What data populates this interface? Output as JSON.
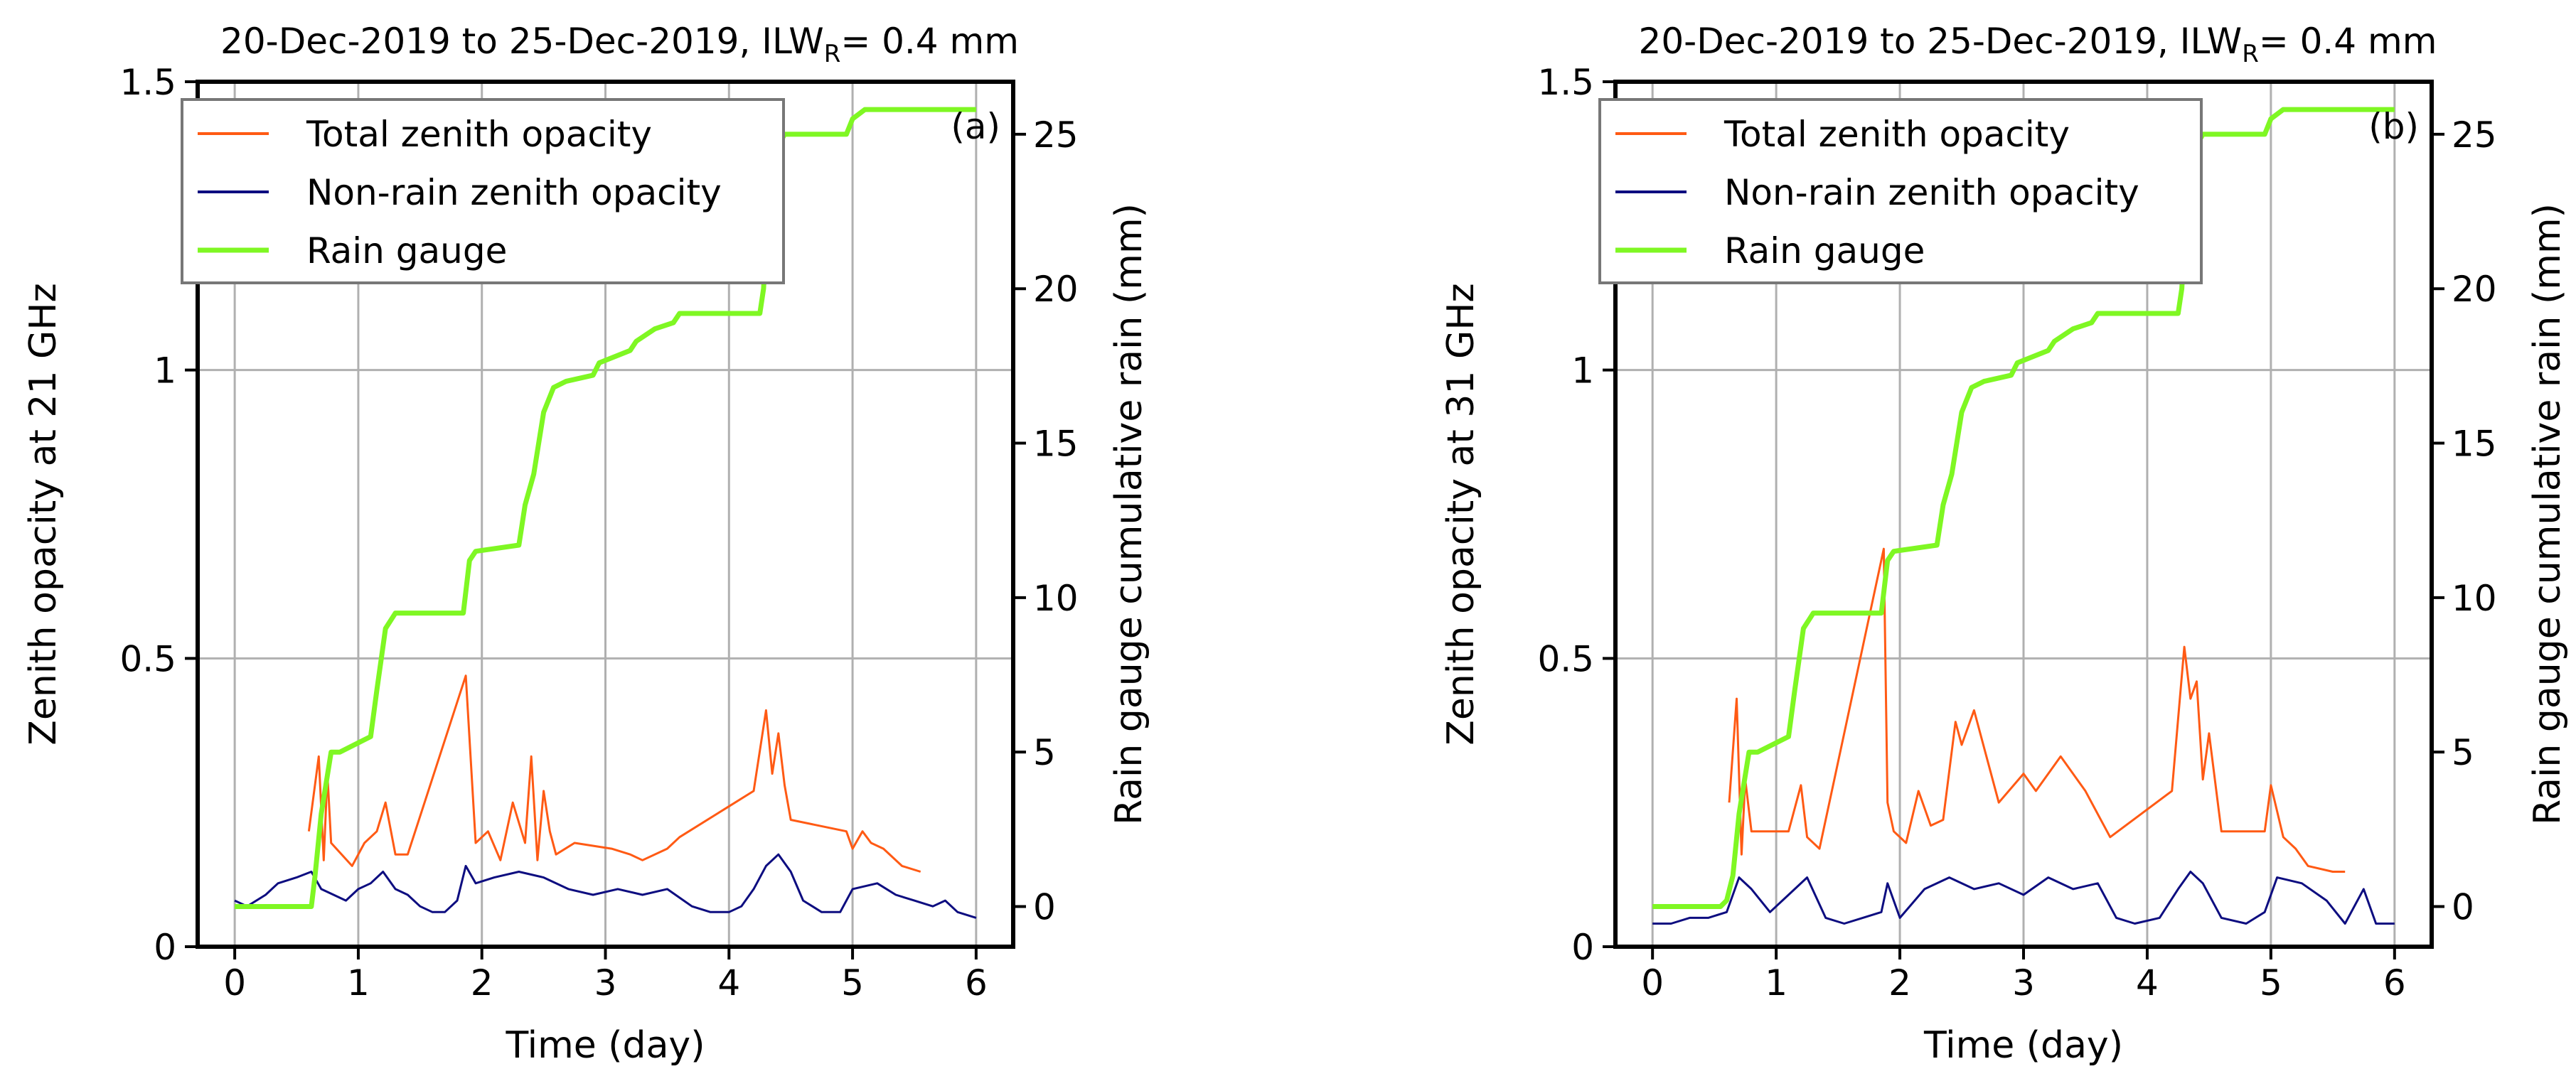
{
  "chart_data": [
    {
      "id": "a",
      "type": "line",
      "title": "20-Dec-2019 to 25-Dec-2019, ILW",
      "title_subscript": "R",
      "title_suffix": "= 0.4 mm",
      "panel_label": "(a)",
      "xlabel": "Time (day)",
      "ylabel": "Zenith opacity at 21 GHz",
      "ylabel_right": "Rain gauge cumulative rain (mm)",
      "xlim": [
        -0.3,
        6.3
      ],
      "ylim": [
        0,
        1.5
      ],
      "ylim_right": [
        -1.3,
        26.7
      ],
      "xticks": [
        "0",
        "1",
        "2",
        "3",
        "4",
        "5",
        "6"
      ],
      "yticks": [
        "0",
        "0.5",
        "1",
        "1.5"
      ],
      "yticks_right": [
        "0",
        "5",
        "10",
        "15",
        "20",
        "25"
      ],
      "grid": true,
      "legend": {
        "placement": "upper-left",
        "entries": [
          "Total zenith opacity",
          "Non-rain zenith opacity",
          "Rain gauge"
        ]
      },
      "series": [
        {
          "name": "Total zenith opacity",
          "color": "#ff5a14",
          "axis": "left",
          "x": [
            0.6,
            0.68,
            0.72,
            0.75,
            0.78,
            0.95,
            1.05,
            1.15,
            1.22,
            1.3,
            1.4,
            1.87,
            1.95,
            2.05,
            2.15,
            2.25,
            2.35,
            2.4,
            2.45,
            2.5,
            2.55,
            2.6,
            2.75,
            3.05,
            3.2,
            3.3,
            3.5,
            3.6,
            4.2,
            4.3,
            4.35,
            4.4,
            4.45,
            4.5,
            4.95,
            5.0,
            5.08,
            5.15,
            5.25,
            5.4,
            5.55
          ],
          "y": [
            0.2,
            0.33,
            0.15,
            0.3,
            0.18,
            0.14,
            0.18,
            0.2,
            0.25,
            0.16,
            0.16,
            0.47,
            0.18,
            0.2,
            0.15,
            0.25,
            0.18,
            0.33,
            0.15,
            0.27,
            0.2,
            0.16,
            0.18,
            0.17,
            0.16,
            0.15,
            0.17,
            0.19,
            0.27,
            0.41,
            0.3,
            0.37,
            0.28,
            0.22,
            0.2,
            0.17,
            0.2,
            0.18,
            0.17,
            0.14,
            0.13
          ]
        },
        {
          "name": "Non-rain zenith opacity",
          "color": "#0d0d80",
          "axis": "left",
          "x": [
            0,
            0.1,
            0.25,
            0.35,
            0.5,
            0.62,
            0.7,
            0.8,
            0.9,
            1.0,
            1.1,
            1.2,
            1.3,
            1.4,
            1.5,
            1.6,
            1.7,
            1.8,
            1.87,
            1.95,
            2.1,
            2.3,
            2.5,
            2.7,
            2.9,
            3.1,
            3.3,
            3.5,
            3.7,
            3.85,
            4.0,
            4.1,
            4.2,
            4.3,
            4.4,
            4.5,
            4.6,
            4.75,
            4.9,
            5.0,
            5.2,
            5.35,
            5.5,
            5.65,
            5.75,
            5.85,
            6.0
          ],
          "y": [
            0.08,
            0.07,
            0.09,
            0.11,
            0.12,
            0.13,
            0.1,
            0.09,
            0.08,
            0.1,
            0.11,
            0.13,
            0.1,
            0.09,
            0.07,
            0.06,
            0.06,
            0.08,
            0.14,
            0.11,
            0.12,
            0.13,
            0.12,
            0.1,
            0.09,
            0.1,
            0.09,
            0.1,
            0.07,
            0.06,
            0.06,
            0.07,
            0.1,
            0.14,
            0.16,
            0.13,
            0.08,
            0.06,
            0.06,
            0.1,
            0.11,
            0.09,
            0.08,
            0.07,
            0.08,
            0.06,
            0.05
          ]
        },
        {
          "name": "Rain gauge",
          "color": "#7ff723",
          "axis": "right",
          "x": [
            0,
            0.62,
            0.65,
            0.7,
            0.78,
            0.85,
            1.1,
            1.15,
            1.22,
            1.3,
            1.38,
            1.85,
            1.9,
            1.95,
            2.3,
            2.35,
            2.42,
            2.5,
            2.55,
            2.58,
            2.68,
            2.9,
            2.95,
            3.2,
            3.25,
            3.4,
            3.55,
            3.6,
            3.9,
            4.25,
            4.28,
            4.32,
            4.38,
            4.45,
            4.95,
            5.0,
            5.1,
            6.0
          ],
          "y": [
            0,
            0,
            1,
            3,
            5,
            5,
            5.5,
            7,
            9,
            9.5,
            9.5,
            9.5,
            11.2,
            11.5,
            11.7,
            13,
            14,
            16,
            16.5,
            16.8,
            17,
            17.2,
            17.6,
            18,
            18.3,
            18.7,
            18.9,
            19.2,
            19.2,
            19.2,
            20,
            23,
            24.5,
            25,
            25,
            25.5,
            25.8,
            25.8
          ]
        }
      ]
    },
    {
      "id": "b",
      "type": "line",
      "title": "20-Dec-2019 to 25-Dec-2019, ILW",
      "title_subscript": "R",
      "title_suffix": "= 0.4 mm",
      "panel_label": "(b)",
      "xlabel": "Time (day)",
      "ylabel": "Zenith opacity at 31 GHz",
      "ylabel_right": "Rain gauge cumulative rain (mm)",
      "xlim": [
        -0.3,
        6.3
      ],
      "ylim": [
        0,
        1.5
      ],
      "ylim_right": [
        -1.3,
        26.7
      ],
      "xticks": [
        "0",
        "1",
        "2",
        "3",
        "4",
        "5",
        "6"
      ],
      "yticks": [
        "0",
        "0.5",
        "1",
        "1.5"
      ],
      "yticks_right": [
        "0",
        "5",
        "10",
        "15",
        "20",
        "25"
      ],
      "grid": true,
      "legend": {
        "placement": "upper-left",
        "entries": [
          "Total zenith opacity",
          "Non-rain zenith opacity",
          "Rain gauge"
        ]
      },
      "series": [
        {
          "name": "Total zenith opacity",
          "color": "#ff5a14",
          "axis": "left",
          "x": [
            0.62,
            0.68,
            0.72,
            0.75,
            0.8,
            1.1,
            1.2,
            1.25,
            1.35,
            1.87,
            1.9,
            1.95,
            2.05,
            2.15,
            2.25,
            2.35,
            2.45,
            2.5,
            2.6,
            2.8,
            3.0,
            3.1,
            3.3,
            3.5,
            3.6,
            3.7,
            4.2,
            4.3,
            4.35,
            4.4,
            4.45,
            4.5,
            4.6,
            4.95,
            5.0,
            5.1,
            5.2,
            5.3,
            5.5,
            5.6
          ],
          "y": [
            0.25,
            0.43,
            0.16,
            0.29,
            0.2,
            0.2,
            0.28,
            0.19,
            0.17,
            0.69,
            0.25,
            0.2,
            0.18,
            0.27,
            0.21,
            0.22,
            0.39,
            0.35,
            0.41,
            0.25,
            0.3,
            0.27,
            0.33,
            0.27,
            0.23,
            0.19,
            0.27,
            0.52,
            0.43,
            0.46,
            0.29,
            0.37,
            0.2,
            0.2,
            0.28,
            0.19,
            0.17,
            0.14,
            0.13,
            0.13
          ]
        },
        {
          "name": "Non-rain zenith opacity",
          "color": "#0d0d80",
          "axis": "left",
          "x": [
            0,
            0.15,
            0.3,
            0.45,
            0.6,
            0.7,
            0.8,
            0.95,
            1.1,
            1.25,
            1.4,
            1.55,
            1.7,
            1.85,
            1.9,
            2.0,
            2.2,
            2.4,
            2.6,
            2.8,
            3.0,
            3.2,
            3.4,
            3.6,
            3.75,
            3.9,
            4.1,
            4.25,
            4.35,
            4.45,
            4.6,
            4.8,
            4.95,
            5.05,
            5.25,
            5.45,
            5.6,
            5.75,
            5.85,
            6.0
          ],
          "y": [
            0.04,
            0.04,
            0.05,
            0.05,
            0.06,
            0.12,
            0.1,
            0.06,
            0.09,
            0.12,
            0.05,
            0.04,
            0.05,
            0.06,
            0.11,
            0.05,
            0.1,
            0.12,
            0.1,
            0.11,
            0.09,
            0.12,
            0.1,
            0.11,
            0.05,
            0.04,
            0.05,
            0.1,
            0.13,
            0.11,
            0.05,
            0.04,
            0.06,
            0.12,
            0.11,
            0.08,
            0.04,
            0.1,
            0.04,
            0.04
          ]
        },
        {
          "name": "Rain gauge",
          "color": "#7ff723",
          "axis": "right",
          "x": [
            0,
            0.55,
            0.6,
            0.65,
            0.7,
            0.78,
            0.85,
            1.1,
            1.15,
            1.22,
            1.3,
            1.38,
            1.85,
            1.9,
            1.95,
            2.3,
            2.35,
            2.42,
            2.5,
            2.55,
            2.58,
            2.68,
            2.9,
            2.95,
            3.2,
            3.25,
            3.4,
            3.55,
            3.6,
            3.9,
            4.25,
            4.28,
            4.32,
            4.38,
            4.45,
            4.95,
            5.0,
            5.1,
            6.0
          ],
          "y": [
            0,
            0,
            0.2,
            1,
            3,
            5,
            5,
            5.5,
            7,
            9,
            9.5,
            9.5,
            9.5,
            11.2,
            11.5,
            11.7,
            13,
            14,
            16,
            16.5,
            16.8,
            17,
            17.2,
            17.6,
            18,
            18.3,
            18.7,
            18.9,
            19.2,
            19.2,
            19.2,
            20,
            23,
            24.5,
            25,
            25,
            25.5,
            25.8,
            25.8
          ]
        }
      ]
    }
  ]
}
